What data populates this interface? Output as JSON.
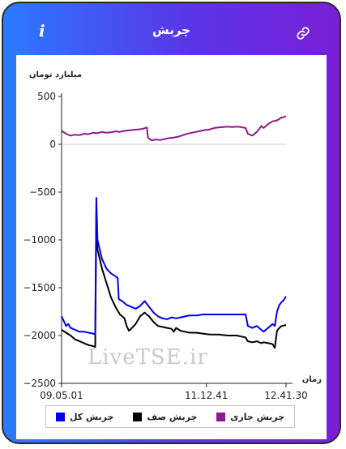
{
  "header": {
    "title": "چربش",
    "info_label": "i",
    "link_icon": "link-icon"
  },
  "watermark": "LiveTSE.ir",
  "chart_data": {
    "type": "line",
    "ylabel": "میلیارد تومان",
    "xlabel": "زمان",
    "ylim": [
      -2500,
      500
    ],
    "yticks": [
      500,
      0,
      -500,
      -1000,
      -1500,
      -2000,
      -2500
    ],
    "ytick_labels": [
      "500",
      "0",
      "−500",
      "−1000",
      "−1500",
      "−2000",
      "−2500"
    ],
    "xticks": [
      {
        "t": 0,
        "label": "09.05.01"
      },
      {
        "t": 0.645,
        "label": "11.12.41"
      },
      {
        "t": 1,
        "label": "12.41.30"
      }
    ],
    "zero_line": true,
    "legend_position": "bottom",
    "series": [
      {
        "name": "چربش جاری",
        "color": "#8b1a8b",
        "points": [
          [
            0,
            140
          ],
          [
            0.02,
            110
          ],
          [
            0.04,
            90
          ],
          [
            0.06,
            100
          ],
          [
            0.08,
            95
          ],
          [
            0.1,
            110
          ],
          [
            0.12,
            105
          ],
          [
            0.14,
            120
          ],
          [
            0.16,
            115
          ],
          [
            0.18,
            130
          ],
          [
            0.2,
            120
          ],
          [
            0.22,
            125
          ],
          [
            0.24,
            135
          ],
          [
            0.26,
            130
          ],
          [
            0.28,
            140
          ],
          [
            0.3,
            145
          ],
          [
            0.32,
            150
          ],
          [
            0.34,
            155
          ],
          [
            0.36,
            160
          ],
          [
            0.38,
            175
          ],
          [
            0.385,
            70
          ],
          [
            0.4,
            40
          ],
          [
            0.42,
            50
          ],
          [
            0.44,
            45
          ],
          [
            0.46,
            55
          ],
          [
            0.48,
            65
          ],
          [
            0.5,
            70
          ],
          [
            0.52,
            80
          ],
          [
            0.54,
            95
          ],
          [
            0.56,
            110
          ],
          [
            0.58,
            120
          ],
          [
            0.6,
            130
          ],
          [
            0.62,
            140
          ],
          [
            0.64,
            150
          ],
          [
            0.66,
            155
          ],
          [
            0.68,
            170
          ],
          [
            0.7,
            175
          ],
          [
            0.72,
            180
          ],
          [
            0.74,
            185
          ],
          [
            0.76,
            180
          ],
          [
            0.78,
            185
          ],
          [
            0.8,
            180
          ],
          [
            0.82,
            170
          ],
          [
            0.83,
            110
          ],
          [
            0.85,
            90
          ],
          [
            0.87,
            130
          ],
          [
            0.89,
            190
          ],
          [
            0.9,
            170
          ],
          [
            0.92,
            210
          ],
          [
            0.94,
            240
          ],
          [
            0.96,
            250
          ],
          [
            0.98,
            280
          ],
          [
            1,
            290
          ]
        ]
      },
      {
        "name": "چربش صف",
        "color": "#000000",
        "points": [
          [
            0,
            -1940
          ],
          [
            0.02,
            -1970
          ],
          [
            0.04,
            -2000
          ],
          [
            0.06,
            -2040
          ],
          [
            0.08,
            -2060
          ],
          [
            0.1,
            -2080
          ],
          [
            0.12,
            -2100
          ],
          [
            0.14,
            -2110
          ],
          [
            0.15,
            -2120
          ],
          [
            0.155,
            -700
          ],
          [
            0.16,
            -1100
          ],
          [
            0.18,
            -1300
          ],
          [
            0.2,
            -1450
          ],
          [
            0.22,
            -1600
          ],
          [
            0.24,
            -1700
          ],
          [
            0.26,
            -1780
          ],
          [
            0.28,
            -1820
          ],
          [
            0.29,
            -1900
          ],
          [
            0.3,
            -1950
          ],
          [
            0.31,
            -1930
          ],
          [
            0.33,
            -1880
          ],
          [
            0.35,
            -1800
          ],
          [
            0.37,
            -1760
          ],
          [
            0.39,
            -1800
          ],
          [
            0.41,
            -1860
          ],
          [
            0.43,
            -1900
          ],
          [
            0.45,
            -1910
          ],
          [
            0.47,
            -1920
          ],
          [
            0.49,
            -1930
          ],
          [
            0.5,
            -1960
          ],
          [
            0.51,
            -1920
          ],
          [
            0.53,
            -1950
          ],
          [
            0.55,
            -1960
          ],
          [
            0.57,
            -1970
          ],
          [
            0.6,
            -1970
          ],
          [
            0.63,
            -1980
          ],
          [
            0.66,
            -1990
          ],
          [
            0.7,
            -1990
          ],
          [
            0.74,
            -2000
          ],
          [
            0.78,
            -2000
          ],
          [
            0.8,
            -2010
          ],
          [
            0.82,
            -2020
          ],
          [
            0.83,
            -2060
          ],
          [
            0.85,
            -2070
          ],
          [
            0.87,
            -2060
          ],
          [
            0.89,
            -2080
          ],
          [
            0.9,
            -2070
          ],
          [
            0.92,
            -2080
          ],
          [
            0.94,
            -2090
          ],
          [
            0.95,
            -2130
          ],
          [
            0.96,
            -1950
          ],
          [
            0.97,
            -1920
          ],
          [
            0.98,
            -1900
          ],
          [
            1,
            -1890
          ]
        ]
      },
      {
        "name": "چربش کل",
        "color": "#0000ee",
        "points": [
          [
            0,
            -1800
          ],
          [
            0.01,
            -1850
          ],
          [
            0.02,
            -1900
          ],
          [
            0.03,
            -1880
          ],
          [
            0.04,
            -1920
          ],
          [
            0.06,
            -1940
          ],
          [
            0.08,
            -1960
          ],
          [
            0.1,
            -1960
          ],
          [
            0.12,
            -1970
          ],
          [
            0.14,
            -1980
          ],
          [
            0.15,
            -1990
          ],
          [
            0.155,
            -560
          ],
          [
            0.16,
            -1000
          ],
          [
            0.18,
            -1200
          ],
          [
            0.2,
            -1300
          ],
          [
            0.22,
            -1350
          ],
          [
            0.24,
            -1380
          ],
          [
            0.25,
            -1400
          ],
          [
            0.255,
            -1620
          ],
          [
            0.27,
            -1640
          ],
          [
            0.29,
            -1680
          ],
          [
            0.31,
            -1700
          ],
          [
            0.33,
            -1720
          ],
          [
            0.35,
            -1690
          ],
          [
            0.37,
            -1640
          ],
          [
            0.39,
            -1700
          ],
          [
            0.41,
            -1760
          ],
          [
            0.43,
            -1800
          ],
          [
            0.45,
            -1820
          ],
          [
            0.47,
            -1830
          ],
          [
            0.49,
            -1810
          ],
          [
            0.51,
            -1820
          ],
          [
            0.53,
            -1810
          ],
          [
            0.55,
            -1800
          ],
          [
            0.57,
            -1790
          ],
          [
            0.6,
            -1790
          ],
          [
            0.63,
            -1780
          ],
          [
            0.66,
            -1780
          ],
          [
            0.7,
            -1780
          ],
          [
            0.74,
            -1780
          ],
          [
            0.78,
            -1780
          ],
          [
            0.8,
            -1780
          ],
          [
            0.82,
            -1780
          ],
          [
            0.83,
            -1900
          ],
          [
            0.85,
            -1920
          ],
          [
            0.87,
            -1900
          ],
          [
            0.89,
            -1940
          ],
          [
            0.9,
            -1960
          ],
          [
            0.92,
            -1920
          ],
          [
            0.94,
            -1880
          ],
          [
            0.95,
            -1900
          ],
          [
            0.96,
            -1750
          ],
          [
            0.97,
            -1680
          ],
          [
            0.98,
            -1650
          ],
          [
            0.99,
            -1630
          ],
          [
            1,
            -1590
          ]
        ]
      }
    ]
  }
}
